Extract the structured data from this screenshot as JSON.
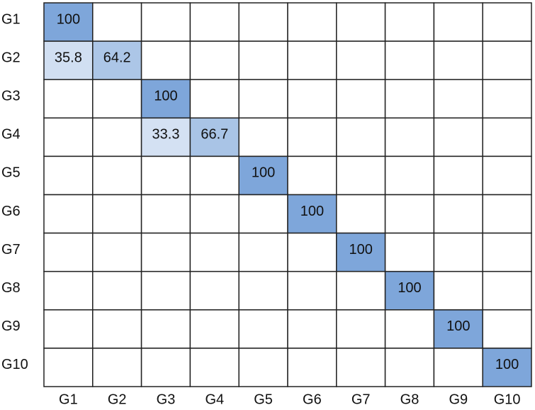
{
  "chart_data": {
    "type": "heatmap",
    "x_categories": [
      "G1",
      "G2",
      "G3",
      "G4",
      "G5",
      "G6",
      "G7",
      "G8",
      "G9",
      "G10"
    ],
    "y_categories": [
      "G1",
      "G2",
      "G3",
      "G4",
      "G5",
      "G6",
      "G7",
      "G8",
      "G9",
      "G10"
    ],
    "values": [
      [
        100,
        null,
        null,
        null,
        null,
        null,
        null,
        null,
        null,
        null
      ],
      [
        35.8,
        64.2,
        null,
        null,
        null,
        null,
        null,
        null,
        null,
        null
      ],
      [
        null,
        null,
        100,
        null,
        null,
        null,
        null,
        null,
        null,
        null
      ],
      [
        null,
        null,
        33.3,
        66.7,
        null,
        null,
        null,
        null,
        null,
        null
      ],
      [
        null,
        null,
        null,
        null,
        100,
        null,
        null,
        null,
        null,
        null
      ],
      [
        null,
        null,
        null,
        null,
        null,
        100,
        null,
        null,
        null,
        null
      ],
      [
        null,
        null,
        null,
        null,
        null,
        null,
        100,
        null,
        null,
        null
      ],
      [
        null,
        null,
        null,
        null,
        null,
        null,
        null,
        100,
        null,
        null
      ],
      [
        null,
        null,
        null,
        null,
        null,
        null,
        null,
        null,
        100,
        null
      ],
      [
        null,
        null,
        null,
        null,
        null,
        null,
        null,
        null,
        null,
        100
      ]
    ],
    "colors": [
      "#ffffff",
      "#7ea6da"
    ]
  }
}
